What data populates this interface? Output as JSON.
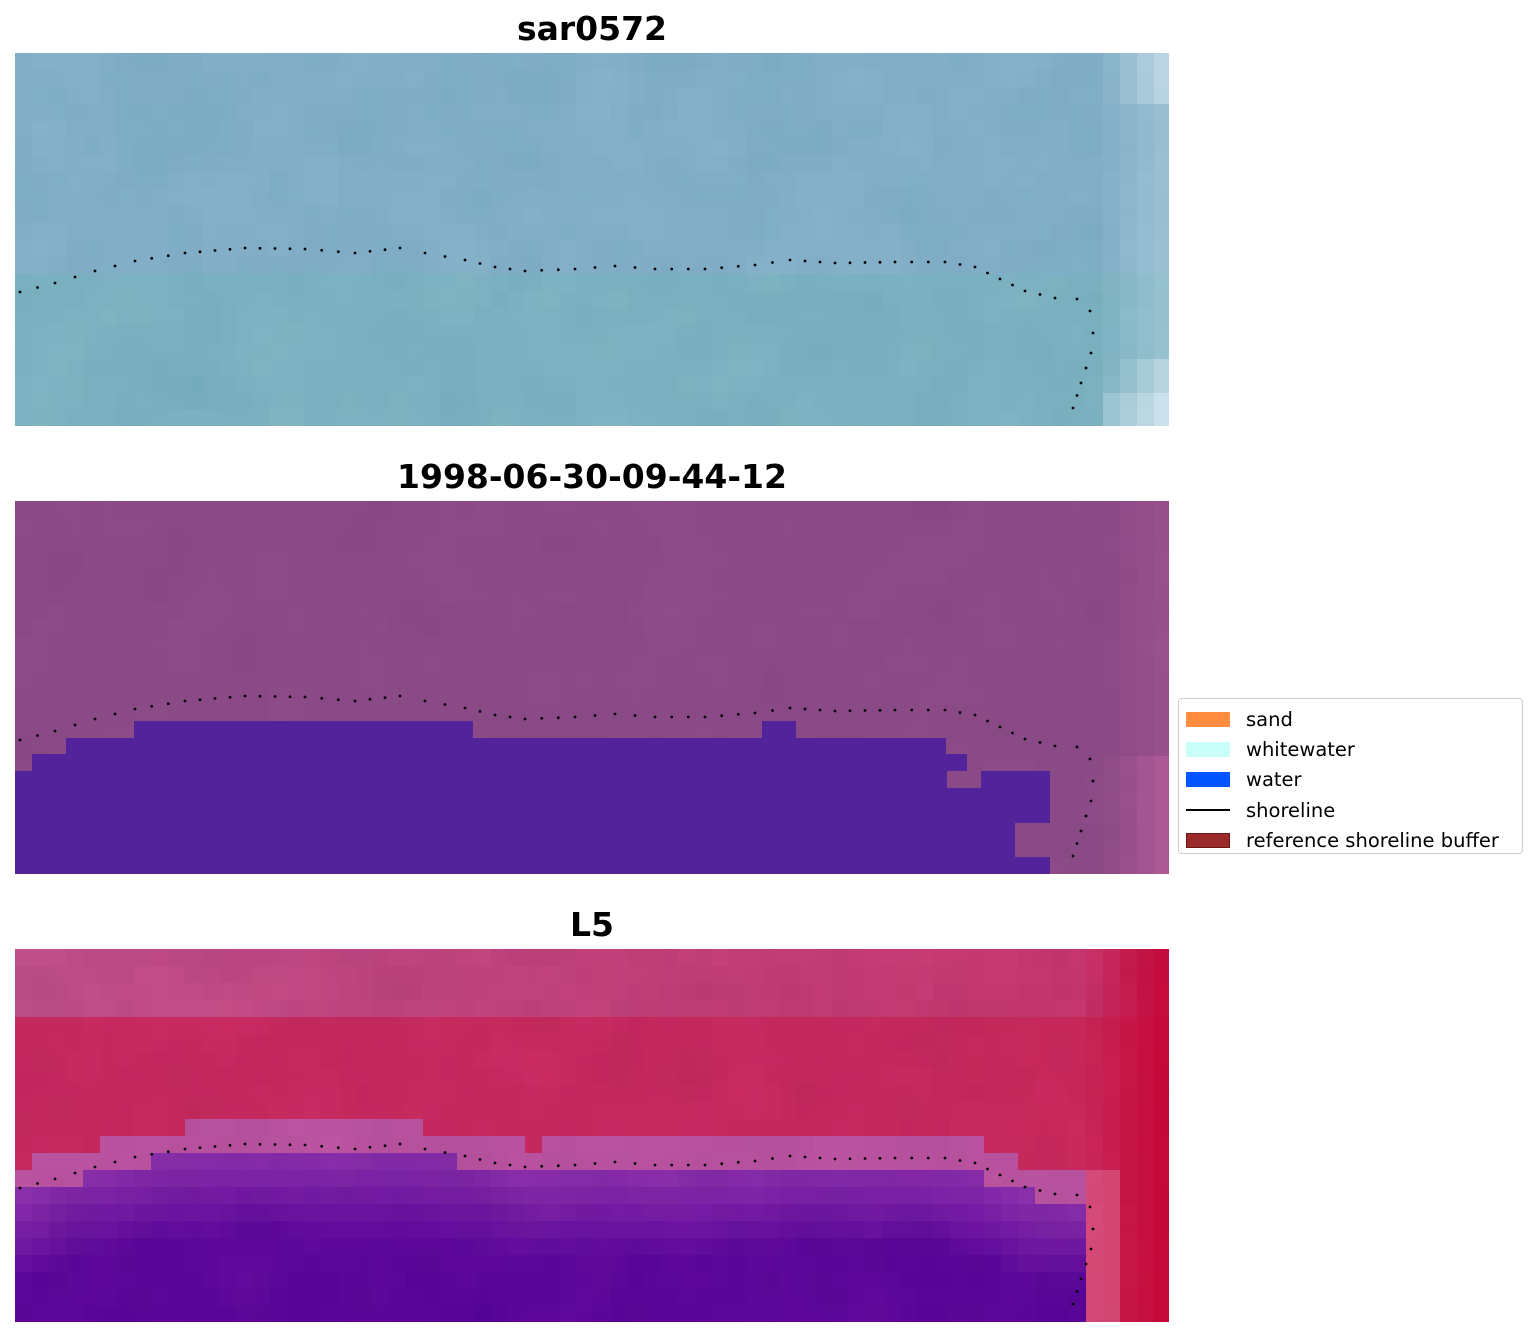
{
  "panels": [
    {
      "title": "sar0572",
      "style": "sar"
    },
    {
      "title": "1998-06-30-09-44-12",
      "style": "classified"
    },
    {
      "title": "L5",
      "style": "index"
    }
  ],
  "legend": {
    "items": [
      {
        "label": "sand",
        "color": "#ff8c3f",
        "kind": "patch"
      },
      {
        "label": "whitewater",
        "color": "#c8fff8",
        "kind": "patch"
      },
      {
        "label": "water",
        "color": "#0055ff",
        "kind": "patch"
      },
      {
        "label": "shoreline",
        "color": "#000000",
        "kind": "line"
      },
      {
        "label": "reference shoreline buffer",
        "color": "#9a2a2a",
        "edge": "#6e1414",
        "kind": "patch"
      }
    ]
  },
  "colors": {
    "sar_base": "#81aec6",
    "classified_land": "#8a4a85",
    "classified_water": "#522399",
    "index_high": "#c4295e",
    "index_low": "#5b0799",
    "shoreline_dots": "#000000"
  }
}
